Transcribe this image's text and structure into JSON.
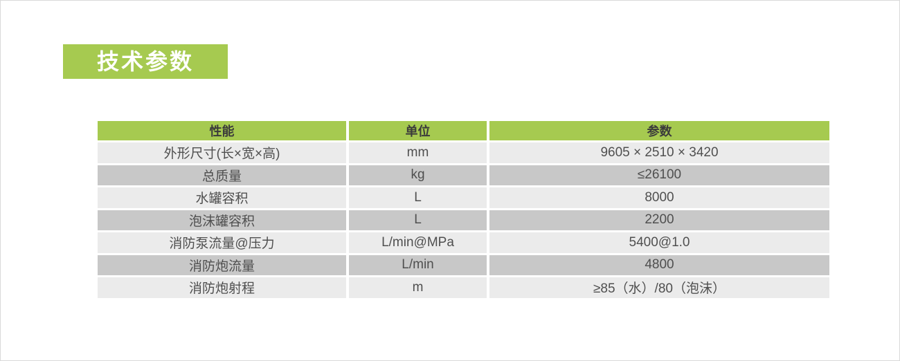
{
  "page": {
    "background": "#ffffff",
    "border_color": "#d9d9d9"
  },
  "title": {
    "label": "技术参数",
    "background": "#a6ca50",
    "text_color": "#ffffff"
  },
  "table": {
    "colors": {
      "header_bg": "#a6ca50",
      "header_text": "#3b3b3b",
      "row_light": "#ebebeb",
      "row_dark": "#c8c8c8",
      "cell_text": "#4f4f4f"
    },
    "headers": [
      "性能",
      "单位",
      "参数"
    ],
    "rows": [
      {
        "property": "外形尺寸(长×宽×高)",
        "unit": "mm",
        "value": "9605 × 2510 × 3420"
      },
      {
        "property": "总质量",
        "unit": "kg",
        "value": "≤26100"
      },
      {
        "property": "水罐容积",
        "unit": "L",
        "value": "8000"
      },
      {
        "property": "泡沫罐容积",
        "unit": "L",
        "value": "2200"
      },
      {
        "property": "消防泵流量@压力",
        "unit": "L/min@MPa",
        "value": "5400@1.0"
      },
      {
        "property": "消防炮流量",
        "unit": "L/min",
        "value": "4800"
      },
      {
        "property": "消防炮射程",
        "unit": "m",
        "value": "≥85（水）/80（泡沫）"
      }
    ]
  }
}
